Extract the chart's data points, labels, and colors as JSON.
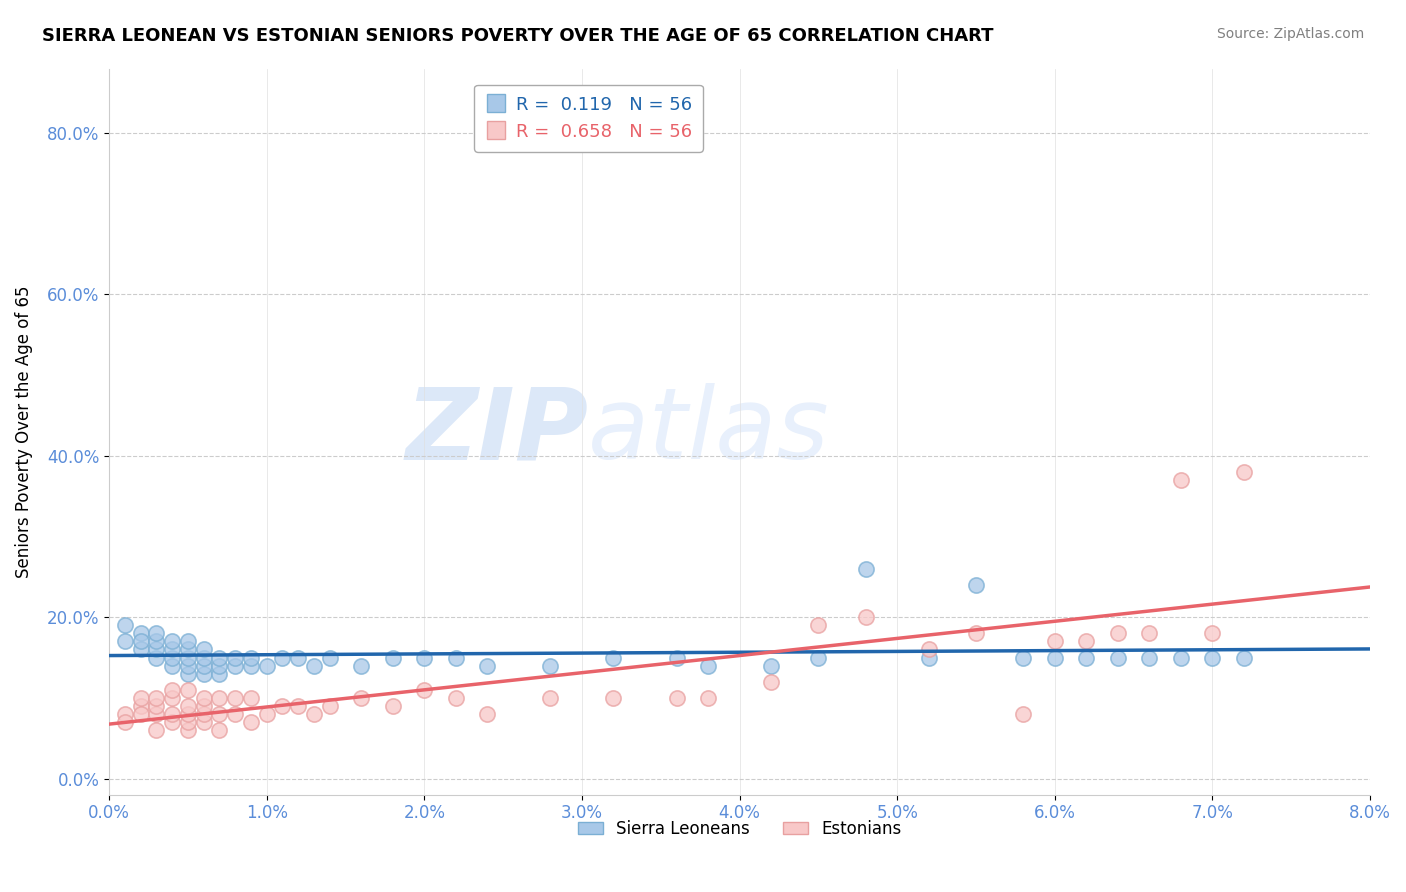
{
  "title": "SIERRA LEONEAN VS ESTONIAN SENIORS POVERTY OVER THE AGE OF 65 CORRELATION CHART",
  "source": "Source: ZipAtlas.com",
  "xlabel_ticks": [
    "0.0%",
    "1.0%",
    "2.0%",
    "3.0%",
    "4.0%",
    "5.0%",
    "6.0%",
    "7.0%",
    "8.0%"
  ],
  "ylabel_ticks": [
    "0.0%",
    "20.0%",
    "40.0%",
    "60.0%",
    "80.0%"
  ],
  "ylabel_label": "Seniors Poverty Over the Age of 65",
  "xlim": [
    0.0,
    0.08
  ],
  "ylim": [
    -0.02,
    0.88
  ],
  "legend_bottom_labels": [
    "Sierra Leoneans",
    "Estonians"
  ],
  "sierra_R": 0.119,
  "estonian_R": 0.658,
  "N": 56,
  "sierra_line_color": "#2166ac",
  "estonian_line_color": "#e8636a",
  "sierra_dot_facecolor": "#a8c8e8",
  "sierra_dot_edgecolor": "#7bafd4",
  "estonian_dot_facecolor": "#f8c8c8",
  "estonian_dot_edgecolor": "#e8a0a0",
  "title_fontsize": 13,
  "axis_tick_color": "#5b8dd9",
  "watermark_color": "#dce8f8",
  "bg_color": "#ffffff",
  "grid_color": "#cccccc",
  "sierra_x": [
    0.001,
    0.001,
    0.002,
    0.002,
    0.002,
    0.003,
    0.003,
    0.003,
    0.003,
    0.004,
    0.004,
    0.004,
    0.004,
    0.005,
    0.005,
    0.005,
    0.005,
    0.005,
    0.006,
    0.006,
    0.006,
    0.006,
    0.007,
    0.007,
    0.007,
    0.008,
    0.008,
    0.009,
    0.009,
    0.01,
    0.011,
    0.012,
    0.013,
    0.014,
    0.016,
    0.018,
    0.02,
    0.022,
    0.024,
    0.028,
    0.032,
    0.036,
    0.038,
    0.042,
    0.045,
    0.048,
    0.052,
    0.055,
    0.058,
    0.06,
    0.062,
    0.064,
    0.066,
    0.068,
    0.07,
    0.072
  ],
  "sierra_y": [
    0.19,
    0.17,
    0.18,
    0.16,
    0.17,
    0.15,
    0.16,
    0.17,
    0.18,
    0.14,
    0.15,
    0.16,
    0.17,
    0.13,
    0.14,
    0.15,
    0.16,
    0.17,
    0.13,
    0.14,
    0.15,
    0.16,
    0.13,
    0.14,
    0.15,
    0.14,
    0.15,
    0.14,
    0.15,
    0.14,
    0.15,
    0.15,
    0.14,
    0.15,
    0.14,
    0.15,
    0.15,
    0.15,
    0.14,
    0.14,
    0.15,
    0.15,
    0.14,
    0.14,
    0.15,
    0.26,
    0.15,
    0.24,
    0.15,
    0.15,
    0.15,
    0.15,
    0.15,
    0.15,
    0.15,
    0.15
  ],
  "estonian_x": [
    0.001,
    0.001,
    0.002,
    0.002,
    0.002,
    0.003,
    0.003,
    0.003,
    0.003,
    0.004,
    0.004,
    0.004,
    0.004,
    0.005,
    0.005,
    0.005,
    0.005,
    0.005,
    0.006,
    0.006,
    0.006,
    0.006,
    0.007,
    0.007,
    0.007,
    0.008,
    0.008,
    0.009,
    0.009,
    0.01,
    0.011,
    0.012,
    0.013,
    0.014,
    0.016,
    0.018,
    0.02,
    0.022,
    0.024,
    0.028,
    0.032,
    0.036,
    0.038,
    0.042,
    0.045,
    0.048,
    0.052,
    0.055,
    0.058,
    0.06,
    0.062,
    0.064,
    0.066,
    0.068,
    0.07,
    0.072
  ],
  "estonian_y": [
    0.08,
    0.07,
    0.09,
    0.08,
    0.1,
    0.06,
    0.08,
    0.09,
    0.1,
    0.07,
    0.08,
    0.1,
    0.11,
    0.06,
    0.07,
    0.08,
    0.09,
    0.11,
    0.07,
    0.08,
    0.09,
    0.1,
    0.06,
    0.08,
    0.1,
    0.08,
    0.1,
    0.07,
    0.1,
    0.08,
    0.09,
    0.09,
    0.08,
    0.09,
    0.1,
    0.09,
    0.11,
    0.1,
    0.08,
    0.1,
    0.1,
    0.1,
    0.1,
    0.12,
    0.19,
    0.2,
    0.16,
    0.18,
    0.08,
    0.17,
    0.17,
    0.18,
    0.18,
    0.37,
    0.18,
    0.38
  ]
}
